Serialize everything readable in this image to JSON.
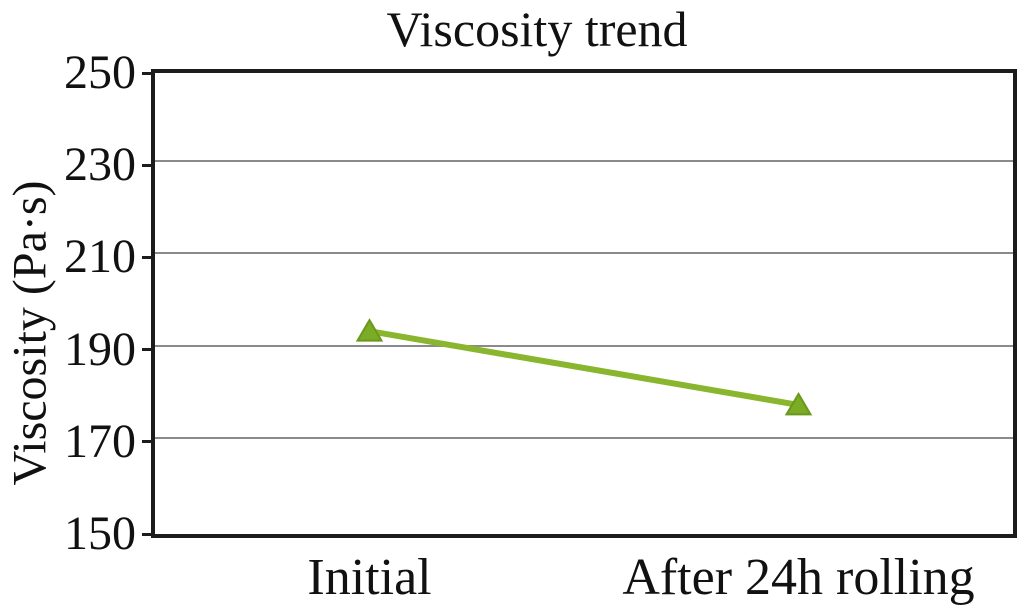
{
  "chart_data": {
    "type": "line",
    "title": "Viscosity trend",
    "ylabel": "Viscosity (Pa·s)",
    "xlabel": "",
    "categories": [
      "Initial",
      "After 24h rolling"
    ],
    "series": [
      {
        "name": "Viscosity",
        "values": [
          194,
          178
        ],
        "color": "#8ab52e",
        "marker": "triangle-up",
        "marker_fill": "#7cab26",
        "marker_stroke": "#6a981c"
      }
    ],
    "ylim": [
      150,
      250
    ],
    "yticks": [
      150,
      170,
      190,
      210,
      230,
      250
    ],
    "grid": true,
    "legend": "none"
  },
  "colors": {
    "background": "#ffffff",
    "text": "#111111",
    "axis_border": "#1c1c1c",
    "gridline": "#8a8a8a"
  }
}
